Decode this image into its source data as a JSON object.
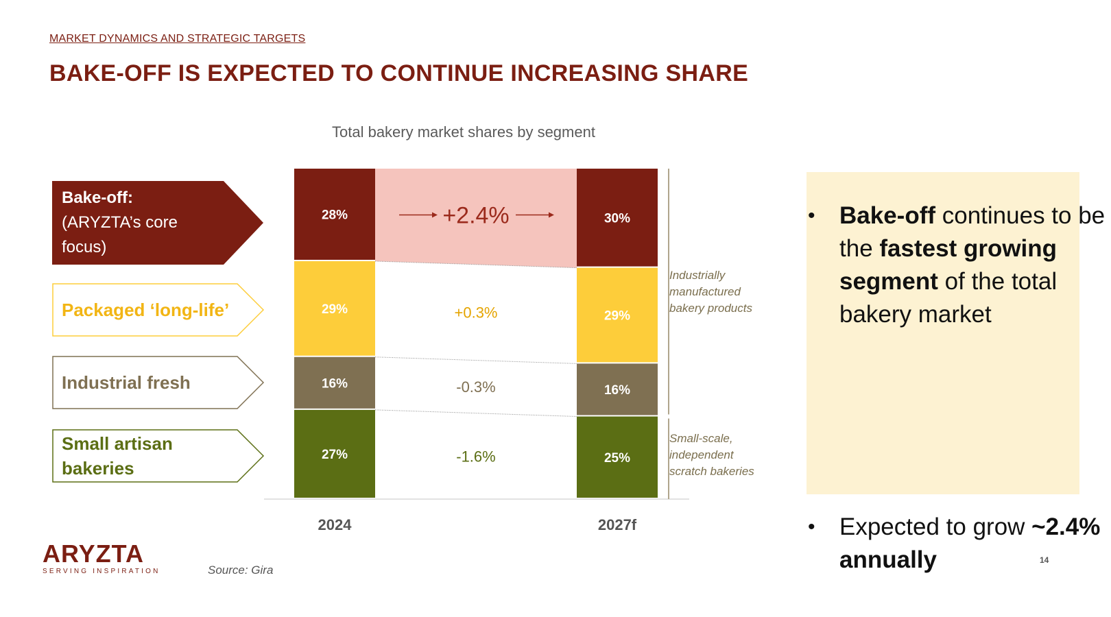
{
  "header": {
    "kicker": "MARKET DYNAMICS AND STRATEGIC TARGETS",
    "title": "BAKE-OFF IS EXPECTED TO CONTINUE INCREASING SHARE"
  },
  "segments": [
    {
      "bold": "Bake-off:",
      "text": "(ARYZTA’s core focus)",
      "color": "#7b1e12"
    },
    {
      "text": "Packaged ‘long-life’",
      "color": "#f2b514"
    },
    {
      "text": "Industrial fresh",
      "color": "#7f7052"
    },
    {
      "text": "Small artisan bakeries",
      "color": "#5b6e14"
    }
  ],
  "chart_data": {
    "type": "bar",
    "stacked": true,
    "title": "Total bakery market shares by segment",
    "categories": [
      "2024",
      "2027f"
    ],
    "series": [
      {
        "name": "Small artisan bakeries",
        "values": [
          27,
          25
        ],
        "labels": [
          "27%",
          "25%"
        ],
        "color": "#5b6e14",
        "change": "-1.6%",
        "change_color": "#5b6e14"
      },
      {
        "name": "Industrial fresh",
        "values": [
          16,
          16
        ],
        "labels": [
          "16%",
          "16%"
        ],
        "color": "#7f7052",
        "change": "-0.3%",
        "change_color": "#7f7052"
      },
      {
        "name": "Packaged ‘long-life’",
        "values": [
          29,
          29
        ],
        "labels": [
          "29%",
          "29%"
        ],
        "color": "#fdcd3a",
        "change": "+0.3%",
        "change_color": "#e5a400"
      },
      {
        "name": "Bake-off",
        "values": [
          28,
          30
        ],
        "labels": [
          "28%",
          "30%"
        ],
        "color": "#7b1e12",
        "change": "+2.4%",
        "change_color": "#9b2a1c"
      }
    ],
    "band_color": "#f5c4bd",
    "brackets": [
      {
        "text": [
          "Industrially",
          "manufactured",
          "bakery products"
        ]
      },
      {
        "text": [
          "Small-scale,",
          "independent",
          "scratch bakeries"
        ]
      }
    ]
  },
  "callout": {
    "bullet1": {
      "b1": "Bake-off",
      "t1": " continues to be the ",
      "b2": "fastest growing segment",
      "t2": " of the total bakery market"
    },
    "bullet2": {
      "t1": "Expected to grow ",
      "b1": "~2.4% annually"
    }
  },
  "footer": {
    "logo_text": "ARYZTA",
    "logo_tagline": "SERVING INSPIRATION",
    "source": "Source: Gira",
    "page_number": "14"
  }
}
